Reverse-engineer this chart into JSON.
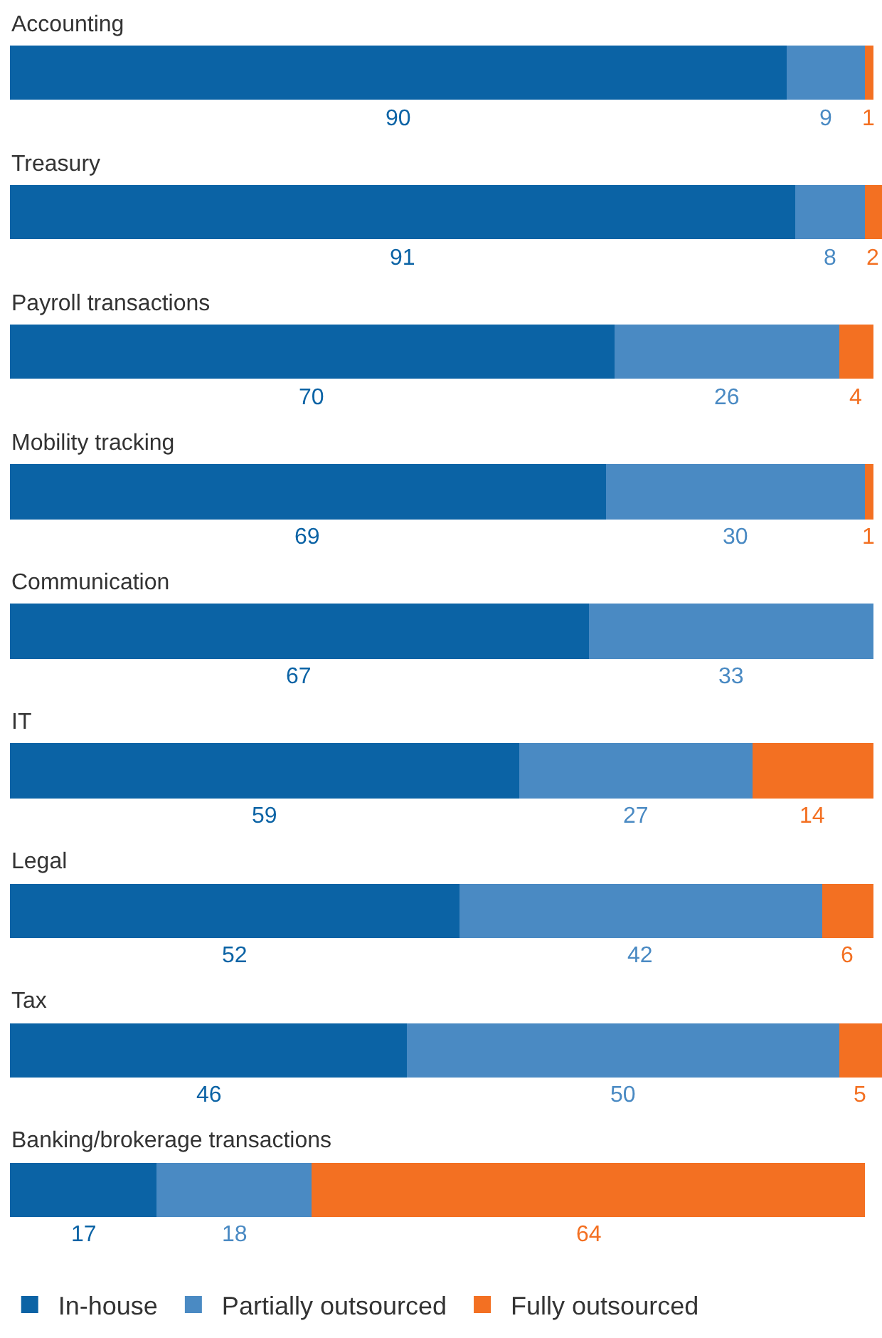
{
  "chart_data": {
    "type": "bar",
    "orientation": "horizontal",
    "stacked": true,
    "data_labels": true,
    "legend": "bottom",
    "tick_labels": false,
    "categories": [
      "Accounting",
      "Treasury",
      "Payroll transactions",
      "Mobility tracking",
      "Communication",
      "IT",
      "Legal",
      "Tax",
      "Banking/brokerage transactions"
    ],
    "series": [
      {
        "name": "In-house",
        "color": "#0b63a5",
        "values": [
          90,
          91,
          70,
          69,
          67,
          59,
          52,
          46,
          17
        ]
      },
      {
        "name": "Partially outsourced",
        "color": "#4a8ac3",
        "values": [
          9,
          8,
          26,
          30,
          33,
          27,
          42,
          50,
          18
        ]
      },
      {
        "name": "Fully outsourced",
        "color": "#f37022",
        "values": [
          1,
          2,
          4,
          1,
          null,
          14,
          6,
          5,
          64
        ]
      }
    ]
  }
}
